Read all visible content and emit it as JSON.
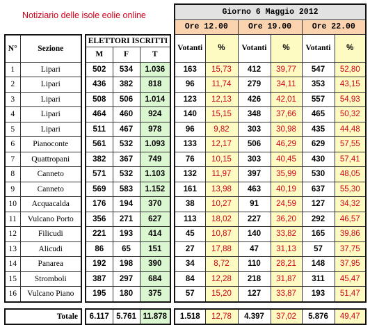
{
  "site_title": "Notiziario delle isole eolie online",
  "giorno": "Giorno 6 Maggio 2012",
  "headers": {
    "n": "N°",
    "sezione": "Sezione",
    "elettori": "ELETTORI ISCRITTI",
    "m": "M",
    "f": "F",
    "t": "T",
    "votanti": "Votanti",
    "pct": "%"
  },
  "ore": [
    "Ore 12.00",
    "Ore 19.00",
    "Ore 22.00"
  ],
  "rows": [
    {
      "n": "1",
      "sezione": "Lipari",
      "m": "502",
      "f": "534",
      "t": "1.036",
      "v1": "163",
      "p1": "15,73",
      "v2": "412",
      "p2": "39,77",
      "v3": "547",
      "p3": "52,80"
    },
    {
      "n": "2",
      "sezione": "Lipari",
      "m": "436",
      "f": "382",
      "t": "818",
      "v1": "96",
      "p1": "11,74",
      "v2": "279",
      "p2": "34,11",
      "v3": "353",
      "p3": "43,15"
    },
    {
      "n": "3",
      "sezione": "Lipari",
      "m": "508",
      "f": "506",
      "t": "1.014",
      "v1": "123",
      "p1": "12,13",
      "v2": "426",
      "p2": "42,01",
      "v3": "557",
      "p3": "54,93"
    },
    {
      "n": "4",
      "sezione": "Lipari",
      "m": "464",
      "f": "460",
      "t": "924",
      "v1": "140",
      "p1": "15,15",
      "v2": "348",
      "p2": "37,66",
      "v3": "465",
      "p3": "50,32"
    },
    {
      "n": "5",
      "sezione": "Lipari",
      "m": "511",
      "f": "467",
      "t": "978",
      "v1": "96",
      "p1": "9,82",
      "v2": "303",
      "p2": "30,98",
      "v3": "435",
      "p3": "44,48"
    },
    {
      "n": "6",
      "sezione": "Pianoconte",
      "m": "561",
      "f": "532",
      "t": "1.093",
      "v1": "133",
      "p1": "12,17",
      "v2": "506",
      "p2": "46,29",
      "v3": "629",
      "p3": "57,55"
    },
    {
      "n": "7",
      "sezione": "Quattropani",
      "m": "382",
      "f": "367",
      "t": "749",
      "v1": "76",
      "p1": "10,15",
      "v2": "303",
      "p2": "40,45",
      "v3": "430",
      "p3": "57,41"
    },
    {
      "n": "8",
      "sezione": "Canneto",
      "m": "571",
      "f": "532",
      "t": "1.103",
      "v1": "132",
      "p1": "11,97",
      "v2": "397",
      "p2": "35,99",
      "v3": "530",
      "p3": "48,05"
    },
    {
      "n": "9",
      "sezione": "Canneto",
      "m": "569",
      "f": "583",
      "t": "1.152",
      "v1": "161",
      "p1": "13,98",
      "v2": "463",
      "p2": "40,19",
      "v3": "637",
      "p3": "55,30"
    },
    {
      "n": "10",
      "sezione": "Acquacalda",
      "m": "176",
      "f": "194",
      "t": "370",
      "v1": "38",
      "p1": "10,27",
      "v2": "91",
      "p2": "24,59",
      "v3": "127",
      "p3": "34,32"
    },
    {
      "n": "11",
      "sezione": "Vulcano Porto",
      "m": "356",
      "f": "271",
      "t": "627",
      "v1": "113",
      "p1": "18,02",
      "v2": "227",
      "p2": "36,20",
      "v3": "292",
      "p3": "46,57"
    },
    {
      "n": "12",
      "sezione": "Filicudi",
      "m": "221",
      "f": "193",
      "t": "414",
      "v1": "45",
      "p1": "10,87",
      "v2": "140",
      "p2": "33,82",
      "v3": "165",
      "p3": "39,86"
    },
    {
      "n": "13",
      "sezione": "Alicudi",
      "m": "86",
      "f": "65",
      "t": "151",
      "v1": "27",
      "p1": "17,88",
      "v2": "47",
      "p2": "31,13",
      "v3": "57",
      "p3": "37,75"
    },
    {
      "n": "14",
      "sezione": "Panarea",
      "m": "192",
      "f": "198",
      "t": "390",
      "v1": "34",
      "p1": "8,72",
      "v2": "110",
      "p2": "28,21",
      "v3": "148",
      "p3": "37,95"
    },
    {
      "n": "15",
      "sezione": "Stromboli",
      "m": "387",
      "f": "297",
      "t": "684",
      "v1": "84",
      "p1": "12,28",
      "v2": "218",
      "p2": "31,87",
      "v3": "311",
      "p3": "45,47"
    },
    {
      "n": "16",
      "sezione": "Vulcano Piano",
      "m": "195",
      "f": "180",
      "t": "375",
      "v1": "57",
      "p1": "15,20",
      "v2": "127",
      "p2": "33,87",
      "v3": "193",
      "p3": "51,47"
    }
  ],
  "totale": {
    "label": "Totale",
    "m": "6.117",
    "f": "5.761",
    "t": "11.878",
    "v1": "1.518",
    "p1": "12,78",
    "v2": "4.397",
    "p2": "37,02",
    "v3": "5.876",
    "p3": "49,47"
  }
}
